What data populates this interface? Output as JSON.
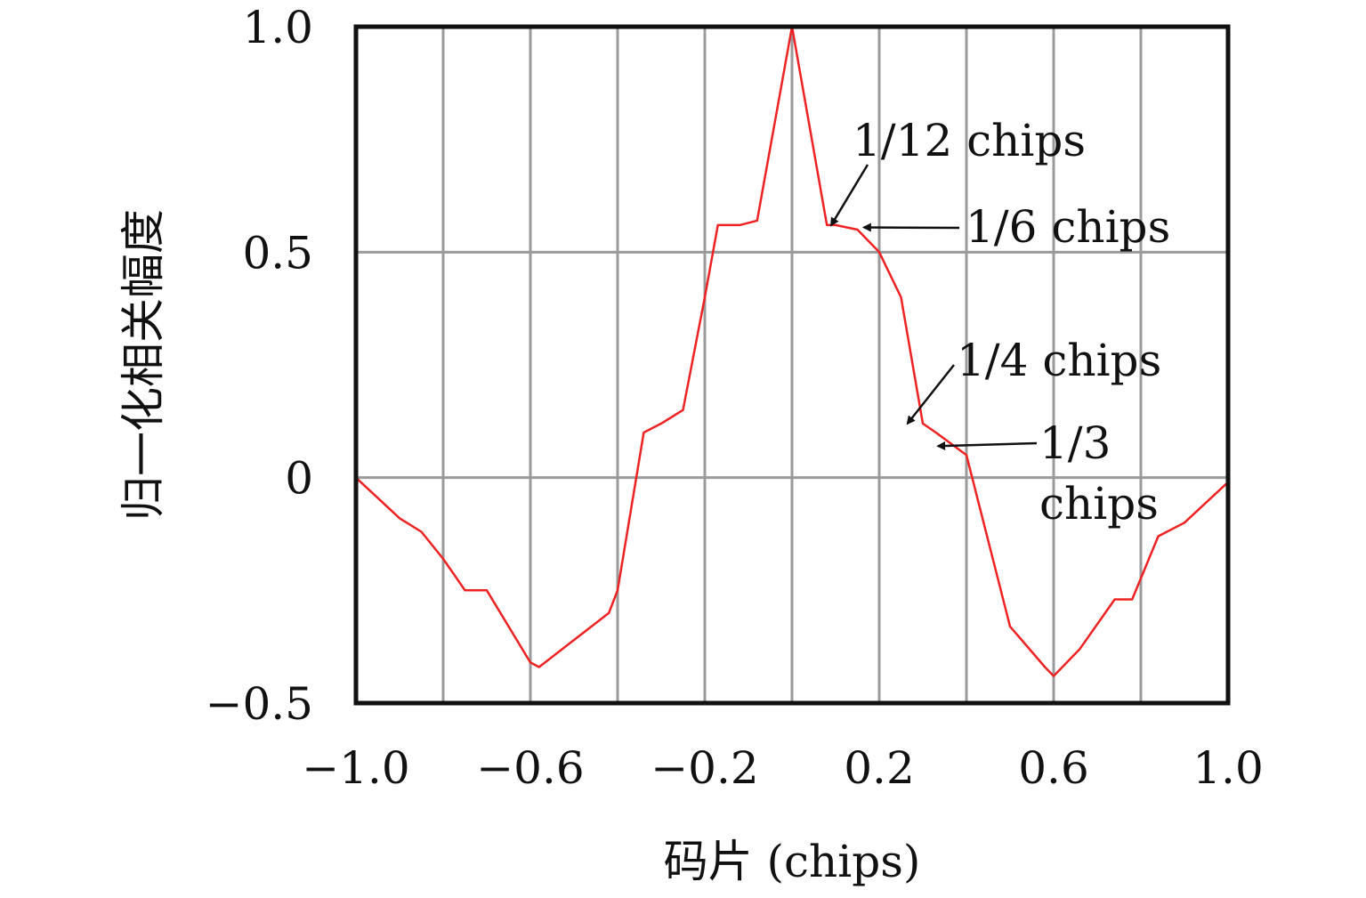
{
  "chart_data": {
    "type": "line",
    "title": "",
    "xlabel": "码片 (chips)",
    "ylabel": "归一化相关幅度",
    "xlim": [
      -1.0,
      1.0
    ],
    "ylim": [
      -0.5,
      1.0
    ],
    "x_ticks": [
      -1.0,
      -0.6,
      -0.2,
      0.2,
      0.6,
      1.0
    ],
    "x_tick_labels": [
      "−1.0",
      "−0.6",
      "−0.2",
      "0.2",
      "0.6",
      "1.0"
    ],
    "y_ticks": [
      1.0,
      0.5,
      0,
      -0.5
    ],
    "y_tick_labels": [
      "1.0",
      "0.5",
      "0",
      "−0.5"
    ],
    "x_grid": [
      -1.0,
      -0.8,
      -0.6,
      -0.4,
      -0.2,
      0,
      0.2,
      0.4,
      0.6,
      0.8,
      1.0
    ],
    "y_grid": [
      0.5,
      0
    ],
    "grid": true,
    "legend": "none",
    "series": [
      {
        "color": "#ee2222",
        "x": [
          -1.0,
          -0.9,
          -0.85,
          -0.8,
          -0.75,
          -0.7,
          -0.6,
          -0.58,
          -0.5,
          -0.42,
          -0.4,
          -0.34,
          -0.3,
          -0.25,
          -0.2,
          -0.17,
          -0.12,
          -0.08,
          0.0,
          0.08,
          0.1,
          0.15,
          0.2,
          0.25,
          0.3,
          0.33,
          0.4,
          0.5,
          0.58,
          0.6,
          0.66,
          0.74,
          0.78,
          0.84,
          0.9,
          1.0
        ],
        "y": [
          0.0,
          -0.09,
          -0.12,
          -0.18,
          -0.25,
          -0.25,
          -0.41,
          -0.42,
          -0.36,
          -0.3,
          -0.25,
          0.1,
          0.12,
          0.15,
          0.4,
          0.56,
          0.56,
          0.57,
          1.0,
          0.56,
          0.56,
          0.55,
          0.5,
          0.4,
          0.12,
          0.1,
          0.05,
          -0.33,
          -0.42,
          -0.44,
          -0.38,
          -0.27,
          -0.27,
          -0.13,
          -0.1,
          -0.01
        ]
      }
    ],
    "annotations": [
      {
        "text": "1/12 chips",
        "point": [
          0.09,
          0.56
        ]
      },
      {
        "text": "1/6 chips",
        "point": [
          0.165,
          0.555
        ]
      },
      {
        "text": "1/4 chips",
        "point": [
          0.265,
          0.12
        ]
      },
      {
        "text": "1/3",
        "text2": "chips",
        "point": [
          0.335,
          0.07
        ]
      }
    ]
  }
}
